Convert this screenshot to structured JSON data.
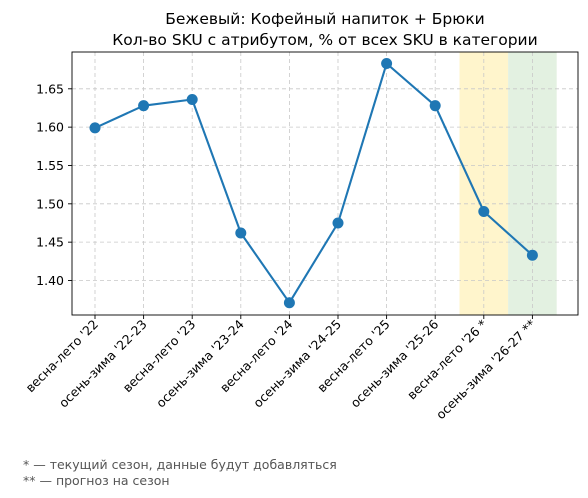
{
  "chart_data": {
    "type": "line",
    "title_line1": "Бежевый: Кофейный напиток + Брюки",
    "title_line2": "Кол-во SKU с атрибутом, % от всех SKU в категории",
    "categories": [
      "весна-лето '22",
      "осень-зима '22-23",
      "весна-лето '23",
      "осень-зима '23-24",
      "весна-лето '24",
      "осень-зима '24-25",
      "весна-лето '25",
      "осень-зима '25-26",
      "весна-лето '26 *",
      "осень-зима '26-27 **"
    ],
    "values": [
      1.599,
      1.628,
      1.636,
      1.462,
      1.371,
      1.475,
      1.683,
      1.628,
      1.49,
      1.433
    ],
    "yticks": [
      1.4,
      1.45,
      1.5,
      1.55,
      1.6,
      1.65
    ],
    "ylim": [
      1.355,
      1.698
    ],
    "grid": true,
    "line_color": "#1f77b4",
    "highlights": [
      {
        "category_index": 8,
        "color": "#fff5cc"
      },
      {
        "category_index": 9,
        "color": "#e3f1e1"
      }
    ]
  },
  "footnotes": {
    "current": "* — текущий сезон, данные будут добавляться",
    "forecast": "** — прогноз на сезон"
  }
}
